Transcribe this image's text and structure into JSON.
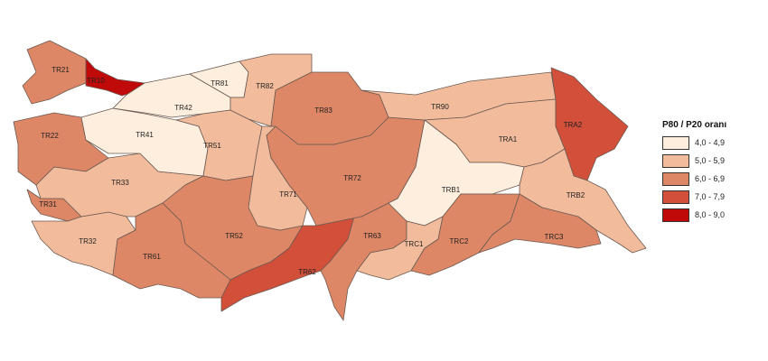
{
  "legend": {
    "title": "P80 / P20 oranı",
    "classes": [
      {
        "label": "4,0 - 4,9",
        "color": "#fdeedd"
      },
      {
        "label": "5,0 - 5,9",
        "color": "#f2bc9c"
      },
      {
        "label": "6,0 - 6,9",
        "color": "#de8766"
      },
      {
        "label": "7,0 - 7,9",
        "color": "#d24f3a"
      },
      {
        "label": "8,0 - 9,0",
        "color": "#c00a0a"
      }
    ]
  },
  "regions": [
    {
      "code": "TR10",
      "class": 5
    },
    {
      "code": "TR21",
      "class": 3
    },
    {
      "code": "TR22",
      "class": 3
    },
    {
      "code": "TR31",
      "class": 3
    },
    {
      "code": "TR32",
      "class": 2
    },
    {
      "code": "TR33",
      "class": 2
    },
    {
      "code": "TR41",
      "class": 1
    },
    {
      "code": "TR42",
      "class": 1
    },
    {
      "code": "TR51",
      "class": 2
    },
    {
      "code": "TR52",
      "class": 3
    },
    {
      "code": "TR61",
      "class": 3
    },
    {
      "code": "TR62",
      "class": 4
    },
    {
      "code": "TR63",
      "class": 3
    },
    {
      "code": "TR71",
      "class": 2
    },
    {
      "code": "TR72",
      "class": 3
    },
    {
      "code": "TR81",
      "class": 1
    },
    {
      "code": "TR82",
      "class": 2
    },
    {
      "code": "TR83",
      "class": 3
    },
    {
      "code": "TR90",
      "class": 2
    },
    {
      "code": "TRA1",
      "class": 2
    },
    {
      "code": "TRA2",
      "class": 4
    },
    {
      "code": "TRB1",
      "class": 1
    },
    {
      "code": "TRB2",
      "class": 2
    },
    {
      "code": "TRC1",
      "class": 2
    },
    {
      "code": "TRC2",
      "class": 3
    },
    {
      "code": "TRC3",
      "class": 3
    }
  ]
}
